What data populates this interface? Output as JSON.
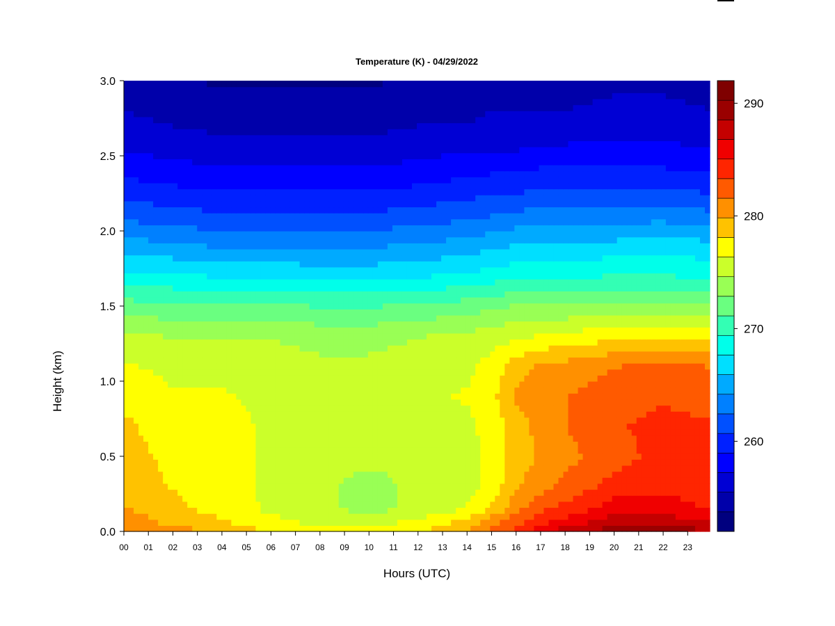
{
  "chart_data": {
    "type": "heatmap",
    "title": "Temperature (K) - 04/29/2022",
    "xlabel": "Hours (UTC)",
    "ylabel": "Height (km)",
    "x_ticks": [
      "00",
      "01",
      "02",
      "03",
      "04",
      "05",
      "06",
      "07",
      "08",
      "09",
      "10",
      "11",
      "12",
      "13",
      "14",
      "15",
      "16",
      "17",
      "18",
      "19",
      "20",
      "21",
      "22",
      "23"
    ],
    "x_range": [
      0,
      23.9
    ],
    "y_ticks": [
      "0.0",
      "0.5",
      "1.0",
      "1.5",
      "2.0",
      "2.5",
      "3.0"
    ],
    "y_range": [
      0,
      3.0
    ],
    "colorbar": {
      "range": [
        252,
        292
      ],
      "ticks": [
        260,
        270,
        280,
        290
      ],
      "colors": [
        "#00007f",
        "#0000aa",
        "#0000d4",
        "#0000ff",
        "#0020ff",
        "#0050ff",
        "#0080ff",
        "#00aaff",
        "#00dfff",
        "#00ffea",
        "#33ffb4",
        "#6aff80",
        "#99ff55",
        "#cbff2a",
        "#ffff00",
        "#ffc200",
        "#ff9000",
        "#ff5a00",
        "#ff2500",
        "#f00000",
        "#c40000",
        "#9a0000",
        "#7f0000"
      ]
    },
    "height_km": [
      0.0,
      0.05,
      0.15,
      0.3,
      0.5,
      0.7,
      0.9,
      1.1,
      1.3,
      1.5,
      1.7,
      1.9,
      2.1,
      2.3,
      2.5,
      2.7,
      2.9,
      3.0
    ],
    "hours": [
      0,
      2,
      4,
      6,
      8,
      10,
      12,
      14,
      15,
      16,
      17,
      18,
      20,
      22,
      23.9
    ],
    "temperature_K": [
      [
        282,
        281,
        279.5,
        278,
        277,
        277,
        278,
        280,
        282,
        284,
        286,
        288,
        289.5,
        290,
        289
      ],
      [
        281,
        279.5,
        278.5,
        277,
        276,
        276,
        277,
        279,
        281,
        283,
        285,
        286,
        288,
        288,
        287
      ],
      [
        280,
        278.5,
        277.5,
        276,
        275,
        274,
        275,
        276.5,
        278.5,
        281,
        283,
        284,
        286,
        286,
        285
      ],
      [
        279,
        278,
        277,
        276,
        275,
        274,
        275,
        275.5,
        277,
        279.5,
        281,
        282,
        284,
        284.5,
        284
      ],
      [
        279,
        277.5,
        277,
        276,
        275,
        275,
        275,
        275.5,
        277,
        279,
        280,
        281,
        282.5,
        284,
        283.5
      ],
      [
        278.5,
        277,
        277,
        276,
        275.5,
        275.5,
        275.5,
        276,
        277,
        279,
        280.5,
        281.5,
        283,
        284,
        283.5
      ],
      [
        277.5,
        276.5,
        276.5,
        276,
        275.5,
        275.5,
        276,
        276.5,
        277.5,
        280,
        281,
        281.5,
        282.5,
        283,
        282.5
      ],
      [
        276.5,
        276,
        276,
        275.5,
        275,
        275,
        275.5,
        276,
        277,
        279,
        280,
        280.5,
        281.5,
        282,
        281.5
      ],
      [
        275,
        274.5,
        274.5,
        274.5,
        274,
        274,
        274.5,
        275,
        275.5,
        276,
        276.5,
        277,
        277.5,
        278,
        277.5
      ],
      [
        272,
        271.5,
        271.5,
        271.5,
        271,
        271,
        271.5,
        272,
        272.5,
        273,
        273,
        273,
        273,
        273.5,
        273
      ],
      [
        268,
        268,
        267.5,
        267.5,
        267,
        267,
        267.5,
        268,
        268.5,
        269,
        269,
        269,
        269.5,
        269.5,
        269
      ],
      [
        265,
        264.5,
        264,
        264,
        264,
        264,
        264.5,
        265,
        265.5,
        266,
        266.5,
        266.5,
        266.5,
        267,
        266.5
      ],
      [
        262,
        261.5,
        261,
        261,
        261,
        261,
        261.5,
        262,
        262.5,
        263,
        263,
        263,
        263.5,
        263.5,
        263
      ],
      [
        259.5,
        259,
        258.5,
        258.5,
        258.5,
        258.5,
        259,
        259.5,
        260,
        260,
        260.5,
        260.5,
        260.5,
        260.5,
        260
      ],
      [
        257.5,
        257,
        256.5,
        256.5,
        256.5,
        256.5,
        257,
        257.5,
        257.5,
        257.5,
        258,
        258,
        258,
        258,
        257.5
      ],
      [
        256,
        255.5,
        255,
        255,
        255,
        255,
        255.5,
        255.5,
        256,
        256,
        256,
        256,
        256.5,
        256.5,
        256
      ],
      [
        255,
        254.5,
        254,
        254,
        254,
        254,
        254.5,
        254.5,
        255,
        255,
        255,
        255,
        255.5,
        255.5,
        255
      ],
      [
        254.5,
        254,
        253.5,
        253.5,
        253.5,
        253.5,
        254,
        254,
        254.5,
        254.5,
        254.5,
        254.5,
        255,
        255,
        254.5
      ]
    ]
  }
}
